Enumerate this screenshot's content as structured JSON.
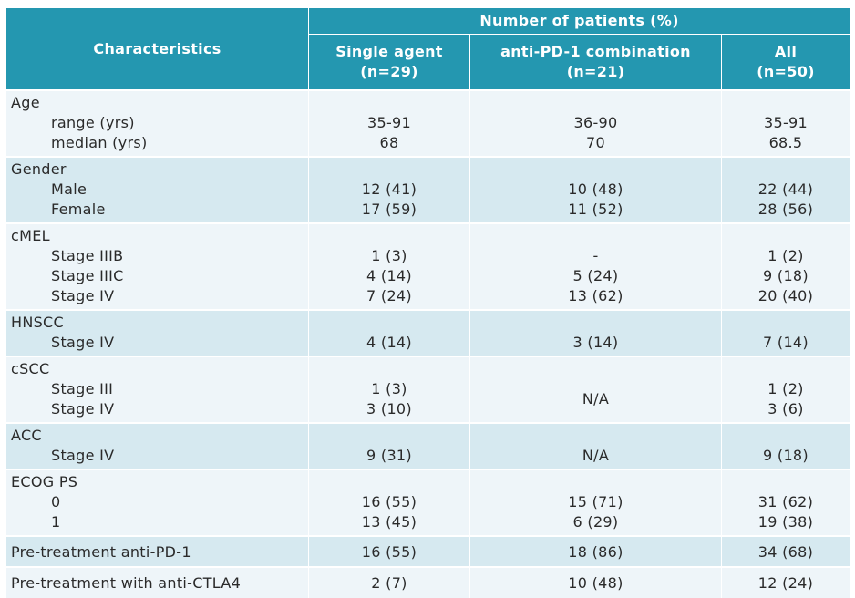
{
  "header": {
    "characteristics": "Characteristics",
    "group_title": "Number of patients (%)",
    "columns": [
      {
        "line1": "Single agent",
        "line2": "(n=29)"
      },
      {
        "line1": "anti-PD-1 combination",
        "line2": "(n=21)"
      },
      {
        "line1": "All",
        "line2": "(n=50)"
      }
    ]
  },
  "groups": [
    {
      "title": "Age",
      "rows": [
        {
          "label": "range (yrs)",
          "single": "35-91",
          "combo": "36-90",
          "all": "35-91"
        },
        {
          "label": "median (yrs)",
          "single": "68",
          "combo": "70",
          "all": "68.5"
        }
      ]
    },
    {
      "title": "Gender",
      "rows": [
        {
          "label": "Male",
          "single": "12 (41)",
          "combo": "10 (48)",
          "all": "22 (44)"
        },
        {
          "label": "Female",
          "single": "17 (59)",
          "combo": "11 (52)",
          "all": "28 (56)"
        }
      ]
    },
    {
      "title": "cMEL",
      "rows": [
        {
          "label": "Stage IIIB",
          "single": "1 (3)",
          "combo": "-",
          "all": "1 (2)"
        },
        {
          "label": "Stage IIIC",
          "single": "4 (14)",
          "combo": "5 (24)",
          "all": "9 (18)"
        },
        {
          "label": "Stage IV",
          "single": "7 (24)",
          "combo": "13 (62)",
          "all": "20 (40)"
        }
      ]
    },
    {
      "title": "HNSCC",
      "rows": [
        {
          "label": "Stage IV",
          "single": "4 (14)",
          "combo": "3 (14)",
          "all": "7 (14)"
        }
      ]
    },
    {
      "title": "cSCC",
      "combo_merged": "N/A",
      "rows": [
        {
          "label": "Stage III",
          "single": "1 (3)",
          "all": "1 (2)"
        },
        {
          "label": "Stage IV",
          "single": "3 (10)",
          "all": "3 (6)"
        }
      ]
    },
    {
      "title": "ACC",
      "rows": [
        {
          "label": "Stage IV",
          "single": "9 (31)",
          "combo": "N/A",
          "all": "9 (18)"
        }
      ]
    },
    {
      "title": "ECOG PS",
      "rows": [
        {
          "label": "0",
          "single": "16 (55)",
          "combo": "15 (71)",
          "all": "31 (62)"
        },
        {
          "label": "1",
          "single": "13 (45)",
          "combo": "6 (29)",
          "all": "19 (38)"
        }
      ]
    }
  ],
  "singles": [
    {
      "label": "Pre-treatment anti-PD-1",
      "single": "16 (55)",
      "combo": "18 (86)",
      "all": "34 (68)"
    },
    {
      "label": "Pre-treatment with anti-CTLA4",
      "single": "2 (7)",
      "combo": "10 (48)",
      "all": "12 (24)"
    }
  ]
}
